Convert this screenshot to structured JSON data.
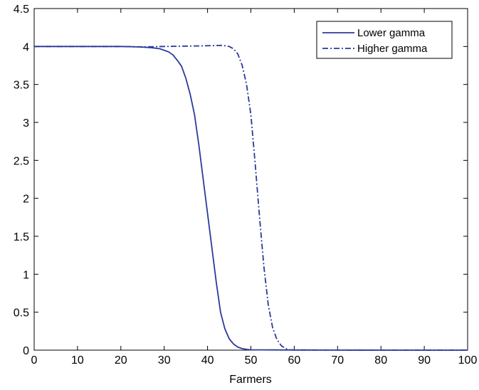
{
  "chart_data": {
    "type": "line",
    "title": "",
    "xlabel": "Farmers",
    "ylabel": "",
    "xlim": [
      0,
      100
    ],
    "ylim": [
      0,
      4.5
    ],
    "xticks": [
      "0",
      "10",
      "20",
      "30",
      "40",
      "50",
      "60",
      "70",
      "80",
      "90",
      "100"
    ],
    "yticks": [
      "0",
      "0.5",
      "1",
      "1.5",
      "2",
      "2.5",
      "3",
      "3.5",
      "4",
      "4.5"
    ],
    "grid": false,
    "legend_position": "top-right",
    "series": [
      {
        "name": "Lower gamma",
        "style": "solid",
        "color": "#2b3a9a",
        "points": [
          [
            0,
            4.0
          ],
          [
            10,
            4.0
          ],
          [
            20,
            4.0
          ],
          [
            24,
            3.995
          ],
          [
            27,
            3.985
          ],
          [
            29,
            3.97
          ],
          [
            31,
            3.93
          ],
          [
            32,
            3.89
          ],
          [
            33,
            3.82
          ],
          [
            34,
            3.74
          ],
          [
            35,
            3.58
          ],
          [
            36,
            3.37
          ],
          [
            37,
            3.1
          ],
          [
            38,
            2.7
          ],
          [
            39,
            2.25
          ],
          [
            40,
            1.8
          ],
          [
            41,
            1.35
          ],
          [
            42,
            0.9
          ],
          [
            43,
            0.5
          ],
          [
            44,
            0.28
          ],
          [
            45,
            0.15
          ],
          [
            46,
            0.08
          ],
          [
            47,
            0.04
          ],
          [
            48,
            0.02
          ],
          [
            49,
            0.01
          ],
          [
            50,
            0.005
          ],
          [
            55,
            0.003
          ],
          [
            60,
            0.002
          ],
          [
            70,
            0.001
          ],
          [
            80,
            0.0
          ],
          [
            90,
            0.0
          ],
          [
            100,
            0.0
          ]
        ]
      },
      {
        "name": "Higher gamma",
        "style": "dashdot",
        "color": "#2b3a9a",
        "points": [
          [
            0,
            4.0
          ],
          [
            10,
            4.0
          ],
          [
            20,
            4.0
          ],
          [
            25,
            3.995
          ],
          [
            30,
            4.0
          ],
          [
            35,
            4.005
          ],
          [
            40,
            4.01
          ],
          [
            43,
            4.015
          ],
          [
            44,
            4.01
          ],
          [
            45,
            4.0
          ],
          [
            46,
            3.97
          ],
          [
            47,
            3.9
          ],
          [
            48,
            3.75
          ],
          [
            49,
            3.5
          ],
          [
            50,
            3.1
          ],
          [
            51,
            2.45
          ],
          [
            52,
            1.75
          ],
          [
            53,
            1.1
          ],
          [
            54,
            0.6
          ],
          [
            55,
            0.3
          ],
          [
            56,
            0.14
          ],
          [
            57,
            0.06
          ],
          [
            58,
            0.02
          ],
          [
            59,
            0.005
          ],
          [
            60,
            0.002
          ],
          [
            70,
            0.001
          ],
          [
            80,
            0.0
          ],
          [
            90,
            0.0
          ],
          [
            100,
            0.0
          ]
        ]
      }
    ]
  }
}
